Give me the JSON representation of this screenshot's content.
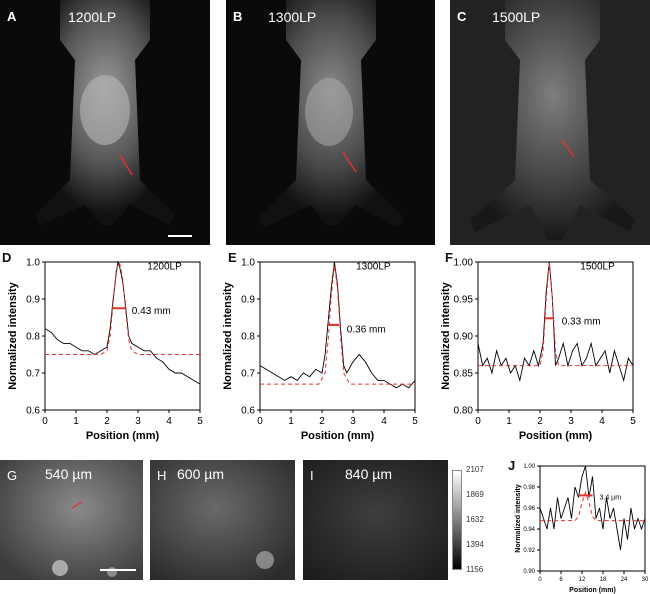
{
  "mouse_panels": [
    {
      "letter": "A",
      "label": "1200LP"
    },
    {
      "letter": "B",
      "label": "1300LP"
    },
    {
      "letter": "C",
      "label": "1500LP"
    }
  ],
  "profile_plots": [
    {
      "letter": "D",
      "label": "1200LP",
      "width_text": "0.43 mm"
    },
    {
      "letter": "E",
      "label": "1300LP",
      "width_text": "0.36 mm"
    },
    {
      "letter": "F",
      "label": "1500LP",
      "width_text": "0.33 mm"
    }
  ],
  "depth_panels": [
    {
      "letter": "G",
      "label": "540 µm"
    },
    {
      "letter": "H",
      "label": "600 µm"
    },
    {
      "letter": "I",
      "label": "840 µm"
    }
  ],
  "colorbar": {
    "ticks": [
      "2107",
      "1869",
      "1632",
      "1394",
      "1156"
    ]
  },
  "plot_j": {
    "letter": "J",
    "width_text": "3.4 µm"
  },
  "colors": {
    "profile_line": "#000000",
    "fit_line": "#e53030",
    "background": "#ffffff"
  },
  "chart_data": [
    {
      "type": "line",
      "xlabel": "Position (mm)",
      "ylabel": "Normalized intensity",
      "xlim": [
        0,
        5
      ],
      "ylim": [
        0.6,
        1.0
      ],
      "xticks": [
        "0",
        "1",
        "2",
        "3",
        "4",
        "5"
      ],
      "yticks": [
        "0.6",
        "0.7",
        "0.8",
        "0.9",
        "1.0"
      ],
      "series": [
        {
          "x": [
            0,
            0.2,
            0.4,
            0.6,
            0.8,
            1.0,
            1.2,
            1.4,
            1.6,
            1.8,
            2.0,
            2.1,
            2.2,
            2.3,
            2.35,
            2.4,
            2.5,
            2.6,
            2.7,
            2.8,
            3.0,
            3.2,
            3.4,
            3.6,
            3.8,
            4.0,
            4.2,
            4.4,
            4.6,
            4.8,
            5.0
          ],
          "y": [
            0.82,
            0.81,
            0.79,
            0.78,
            0.78,
            0.77,
            0.76,
            0.76,
            0.75,
            0.76,
            0.77,
            0.82,
            0.9,
            0.97,
            1.0,
            0.99,
            0.95,
            0.88,
            0.8,
            0.78,
            0.77,
            0.76,
            0.76,
            0.74,
            0.73,
            0.71,
            0.7,
            0.7,
            0.69,
            0.68,
            0.67
          ]
        },
        {
          "x": [
            0,
            1.8,
            2.0,
            2.1,
            2.2,
            2.3,
            2.4,
            2.5,
            2.6,
            2.7,
            2.8,
            3.0,
            5.0
          ],
          "y": [
            0.75,
            0.75,
            0.76,
            0.8,
            0.89,
            0.98,
            1.0,
            0.96,
            0.87,
            0.79,
            0.76,
            0.75,
            0.75
          ]
        }
      ]
    },
    {
      "type": "line",
      "xlabel": "Position (mm)",
      "ylabel": "Normalized intensity",
      "xlim": [
        0,
        5
      ],
      "ylim": [
        0.6,
        1.0
      ],
      "xticks": [
        "0",
        "1",
        "2",
        "3",
        "4",
        "5"
      ],
      "yticks": [
        "0.6",
        "0.7",
        "0.8",
        "0.9",
        "1.0"
      ],
      "series": [
        {
          "x": [
            0,
            0.2,
            0.4,
            0.6,
            0.8,
            1.0,
            1.2,
            1.4,
            1.6,
            1.8,
            2.0,
            2.1,
            2.2,
            2.3,
            2.4,
            2.5,
            2.6,
            2.7,
            2.8,
            3.0,
            3.2,
            3.4,
            3.6,
            3.8,
            4.0,
            4.2,
            4.4,
            4.6,
            4.8,
            5.0
          ],
          "y": [
            0.72,
            0.71,
            0.7,
            0.69,
            0.68,
            0.69,
            0.68,
            0.7,
            0.69,
            0.71,
            0.7,
            0.75,
            0.84,
            0.93,
            1.0,
            0.94,
            0.82,
            0.72,
            0.7,
            0.73,
            0.75,
            0.73,
            0.7,
            0.68,
            0.68,
            0.67,
            0.66,
            0.67,
            0.66,
            0.68
          ]
        },
        {
          "x": [
            0,
            1.9,
            2.1,
            2.2,
            2.3,
            2.4,
            2.5,
            2.6,
            2.7,
            2.9,
            5.0
          ],
          "y": [
            0.67,
            0.67,
            0.7,
            0.79,
            0.91,
            0.99,
            0.93,
            0.8,
            0.7,
            0.67,
            0.67
          ]
        }
      ]
    },
    {
      "type": "line",
      "xlabel": "Position (mm)",
      "ylabel": "Normalized intensity",
      "xlim": [
        0,
        5
      ],
      "ylim": [
        0.8,
        1.0
      ],
      "xticks": [
        "0",
        "1",
        "2",
        "3",
        "4",
        "5"
      ],
      "yticks": [
        "0.80",
        "0.85",
        "0.90",
        "0.95",
        "1.00"
      ],
      "series": [
        {
          "x": [
            0,
            0.15,
            0.3,
            0.45,
            0.6,
            0.75,
            0.9,
            1.05,
            1.2,
            1.35,
            1.5,
            1.65,
            1.8,
            1.95,
            2.1,
            2.2,
            2.3,
            2.4,
            2.5,
            2.6,
            2.75,
            2.9,
            3.05,
            3.2,
            3.35,
            3.5,
            3.65,
            3.8,
            3.95,
            4.1,
            4.25,
            4.4,
            4.55,
            4.7,
            4.85,
            5.0
          ],
          "y": [
            0.89,
            0.86,
            0.87,
            0.85,
            0.88,
            0.86,
            0.87,
            0.85,
            0.86,
            0.84,
            0.87,
            0.86,
            0.88,
            0.86,
            0.89,
            0.96,
            1.0,
            0.95,
            0.86,
            0.87,
            0.89,
            0.86,
            0.88,
            0.89,
            0.86,
            0.87,
            0.89,
            0.86,
            0.87,
            0.88,
            0.85,
            0.88,
            0.86,
            0.84,
            0.87,
            0.86
          ]
        },
        {
          "x": [
            0,
            2.0,
            2.1,
            2.2,
            2.3,
            2.4,
            2.5,
            2.6,
            5.0
          ],
          "y": [
            0.86,
            0.86,
            0.88,
            0.95,
            1.0,
            0.95,
            0.88,
            0.86,
            0.86
          ]
        }
      ]
    },
    {
      "type": "line",
      "xlabel": "Position (mm)",
      "ylabel": "Normalized intensity",
      "xlim": [
        0,
        30
      ],
      "ylim": [
        0.9,
        1.0
      ],
      "xticks": [
        "0",
        "6",
        "12",
        "18",
        "24",
        "30"
      ],
      "yticks": [
        "0.90",
        "0.92",
        "0.94",
        "0.96",
        "0.98",
        "1.00"
      ],
      "series": [
        {
          "x": [
            0,
            1,
            2,
            3,
            4,
            5,
            6,
            7,
            8,
            9,
            10,
            11,
            12,
            13,
            14,
            15,
            16,
            17,
            18,
            19,
            20,
            21,
            22,
            23,
            24,
            25,
            26,
            27,
            28,
            29,
            30
          ],
          "y": [
            0.96,
            0.95,
            0.94,
            0.96,
            0.94,
            0.97,
            0.95,
            0.96,
            0.97,
            0.95,
            0.98,
            0.97,
            0.99,
            1.0,
            0.97,
            0.99,
            0.95,
            0.96,
            0.94,
            0.97,
            0.95,
            0.96,
            0.94,
            0.92,
            0.95,
            0.93,
            0.96,
            0.94,
            0.95,
            0.94,
            0.95
          ]
        },
        {
          "x": [
            0,
            10,
            11,
            12,
            13,
            14,
            15,
            16,
            30
          ],
          "y": [
            0.948,
            0.948,
            0.952,
            0.965,
            0.975,
            0.965,
            0.952,
            0.948,
            0.948
          ]
        }
      ]
    }
  ]
}
